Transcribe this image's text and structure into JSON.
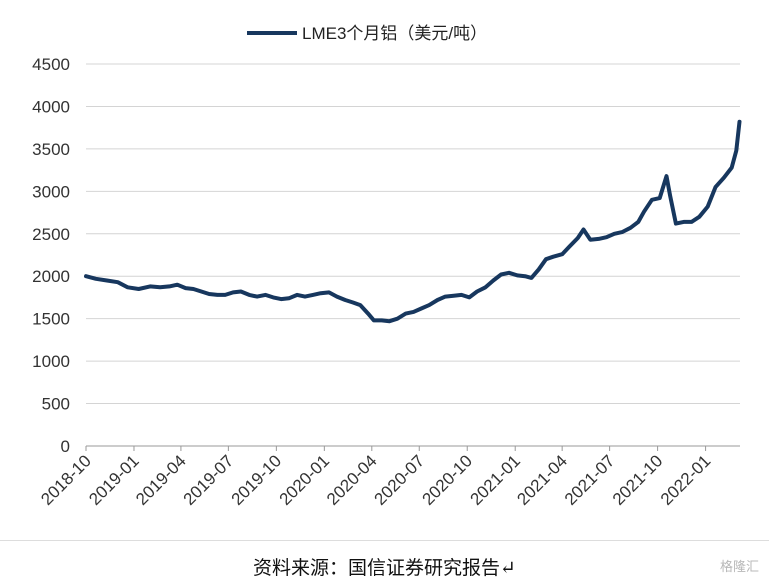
{
  "chart_data": {
    "type": "line",
    "series": [
      {
        "name": "LME3个月铝（美元/吨）",
        "color": "#17375e",
        "points": [
          [
            "2018-10-01",
            2000
          ],
          [
            "2018-10-20",
            1970
          ],
          [
            "2018-11-10",
            1950
          ],
          [
            "2018-12-01",
            1930
          ],
          [
            "2018-12-20",
            1870
          ],
          [
            "2019-01-10",
            1850
          ],
          [
            "2019-02-01",
            1880
          ],
          [
            "2019-02-20",
            1870
          ],
          [
            "2019-03-10",
            1880
          ],
          [
            "2019-03-25",
            1900
          ],
          [
            "2019-04-10",
            1860
          ],
          [
            "2019-04-25",
            1850
          ],
          [
            "2019-05-10",
            1820
          ],
          [
            "2019-05-25",
            1790
          ],
          [
            "2019-06-10",
            1780
          ],
          [
            "2019-06-25",
            1780
          ],
          [
            "2019-07-10",
            1810
          ],
          [
            "2019-07-25",
            1820
          ],
          [
            "2019-08-10",
            1780
          ],
          [
            "2019-08-25",
            1760
          ],
          [
            "2019-09-10",
            1780
          ],
          [
            "2019-09-25",
            1750
          ],
          [
            "2019-10-10",
            1730
          ],
          [
            "2019-10-25",
            1740
          ],
          [
            "2019-11-10",
            1780
          ],
          [
            "2019-11-25",
            1760
          ],
          [
            "2019-12-10",
            1780
          ],
          [
            "2019-12-25",
            1800
          ],
          [
            "2020-01-10",
            1810
          ],
          [
            "2020-01-25",
            1760
          ],
          [
            "2020-02-10",
            1720
          ],
          [
            "2020-02-25",
            1690
          ],
          [
            "2020-03-10",
            1660
          ],
          [
            "2020-03-25",
            1560
          ],
          [
            "2020-04-05",
            1480
          ],
          [
            "2020-04-20",
            1480
          ],
          [
            "2020-05-05",
            1470
          ],
          [
            "2020-05-20",
            1500
          ],
          [
            "2020-06-05",
            1560
          ],
          [
            "2020-06-20",
            1580
          ],
          [
            "2020-07-05",
            1620
          ],
          [
            "2020-07-20",
            1660
          ],
          [
            "2020-08-05",
            1720
          ],
          [
            "2020-08-20",
            1760
          ],
          [
            "2020-09-05",
            1770
          ],
          [
            "2020-09-20",
            1780
          ],
          [
            "2020-10-05",
            1750
          ],
          [
            "2020-10-20",
            1820
          ],
          [
            "2020-11-05",
            1870
          ],
          [
            "2020-11-20",
            1950
          ],
          [
            "2020-12-05",
            2020
          ],
          [
            "2020-12-20",
            2040
          ],
          [
            "2021-01-05",
            2010
          ],
          [
            "2021-01-20",
            2000
          ],
          [
            "2021-02-01",
            1980
          ],
          [
            "2021-02-15",
            2080
          ],
          [
            "2021-03-01",
            2200
          ],
          [
            "2021-03-15",
            2230
          ],
          [
            "2021-04-01",
            2260
          ],
          [
            "2021-04-15",
            2350
          ],
          [
            "2021-05-01",
            2450
          ],
          [
            "2021-05-12",
            2550
          ],
          [
            "2021-05-25",
            2430
          ],
          [
            "2021-06-10",
            2440
          ],
          [
            "2021-06-25",
            2460
          ],
          [
            "2021-07-10",
            2500
          ],
          [
            "2021-07-25",
            2520
          ],
          [
            "2021-08-10",
            2570
          ],
          [
            "2021-08-25",
            2640
          ],
          [
            "2021-09-05",
            2760
          ],
          [
            "2021-09-20",
            2900
          ],
          [
            "2021-10-05",
            2920
          ],
          [
            "2021-10-18",
            3180
          ],
          [
            "2021-10-25",
            2950
          ],
          [
            "2021-11-05",
            2620
          ],
          [
            "2021-11-20",
            2640
          ],
          [
            "2021-12-05",
            2640
          ],
          [
            "2021-12-20",
            2700
          ],
          [
            "2022-01-05",
            2820
          ],
          [
            "2022-01-20",
            3050
          ],
          [
            "2022-02-05",
            3160
          ],
          [
            "2022-02-20",
            3280
          ],
          [
            "2022-03-01",
            3480
          ],
          [
            "2022-03-07",
            3820
          ]
        ]
      }
    ],
    "x_ticks": [
      "2018-10",
      "2019-01",
      "2019-04",
      "2019-07",
      "2019-10",
      "2020-01",
      "2020-04",
      "2020-07",
      "2020-10",
      "2021-01",
      "2021-04",
      "2021-07",
      "2021-10",
      "2022-01"
    ],
    "y_ticks": [
      0,
      500,
      1000,
      1500,
      2000,
      2500,
      3000,
      3500,
      4000,
      4500
    ],
    "xlim": [
      "2018-10-01",
      "2022-03-08"
    ],
    "ylim": [
      0,
      4500
    ],
    "legend": "top-center",
    "grid": "horizontal"
  },
  "source_text": "资料来源：国信证券研究报告↵",
  "watermark": "格隆汇"
}
